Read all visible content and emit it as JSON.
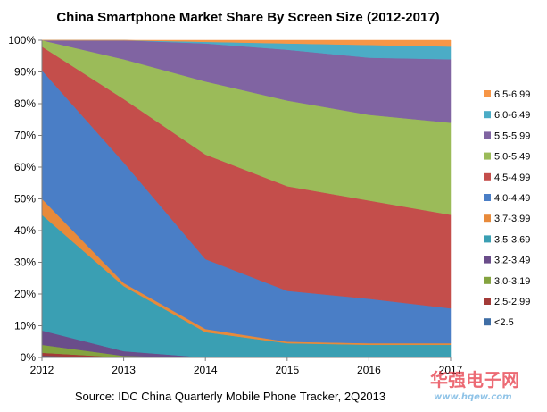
{
  "chart_data": {
    "type": "area",
    "stacked": true,
    "percent": true,
    "title": "China Smartphone Market Share By Screen Size (2012-2017)",
    "x": [
      "2012",
      "2013",
      "2014",
      "2015",
      "2016",
      "2017"
    ],
    "ylim": [
      0,
      100
    ],
    "yticks": [
      "0%",
      "10%",
      "20%",
      "30%",
      "40%",
      "50%",
      "60%",
      "70%",
      "80%",
      "90%",
      "100%"
    ],
    "legend_position": "right",
    "grid": false,
    "series": [
      {
        "name": "<2.5",
        "color": "#3f6ea5",
        "values": [
          0.5,
          0,
          0,
          0,
          0,
          0
        ]
      },
      {
        "name": "2.5-2.99",
        "color": "#a33b38",
        "values": [
          1,
          0,
          0,
          0,
          0,
          0
        ]
      },
      {
        "name": "3.0-3.19",
        "color": "#84a33f",
        "values": [
          2.5,
          0.5,
          0,
          0,
          0,
          0
        ]
      },
      {
        "name": "3.2-3.49",
        "color": "#6a4d8a",
        "values": [
          4.5,
          1.5,
          0,
          0,
          0,
          0
        ]
      },
      {
        "name": "3.5-3.69",
        "color": "#3a9fb3",
        "values": [
          36.5,
          20.5,
          8,
          4.5,
          4,
          4
        ]
      },
      {
        "name": "3.7-3.99",
        "color": "#e88a3a",
        "values": [
          5,
          1,
          1,
          0.5,
          0.5,
          0.5
        ]
      },
      {
        "name": "4.0-4.49",
        "color": "#4a7ec6",
        "values": [
          40.5,
          38,
          22,
          16,
          14,
          11
        ]
      },
      {
        "name": "4.5-4.99",
        "color": "#c44e4b",
        "values": [
          7.5,
          20,
          33,
          33,
          31,
          29.5
        ]
      },
      {
        "name": "5.0-5.49",
        "color": "#9bbb59",
        "values": [
          2,
          12.5,
          23,
          27,
          27,
          29
        ]
      },
      {
        "name": "5.5-5.99",
        "color": "#8064a2",
        "values": [
          0,
          6,
          12,
          16,
          18,
          20
        ]
      },
      {
        "name": "6.0-6.49",
        "color": "#4bacc6",
        "values": [
          0,
          0,
          0.5,
          2,
          4,
          4
        ]
      },
      {
        "name": "6.5-6.99",
        "color": "#f79646",
        "values": [
          0,
          0,
          0.5,
          1,
          1.5,
          2
        ]
      }
    ]
  },
  "source": "Source: IDC China Quarterly Mobile Phone Tracker, 2Q2013",
  "watermark": {
    "logo_text": "华强电子网",
    "url": "www.hqew.com"
  }
}
